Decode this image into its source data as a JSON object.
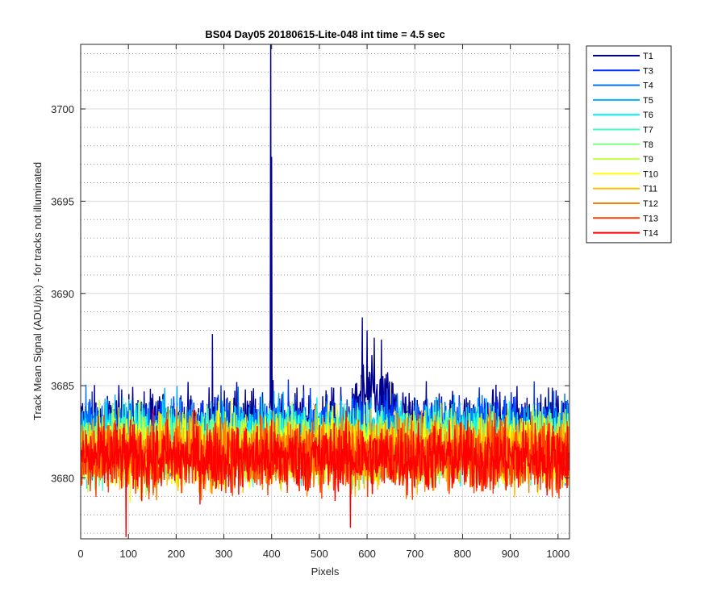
{
  "chart_data": {
    "type": "line",
    "title": "BS04 Day05 20180615-Lite-048 int time = 4.5 sec",
    "xlabel": "Pixels",
    "ylabel": "Track Mean Signal (ADU/pix) - for tracks not illuminated",
    "xlim": [
      0,
      1024
    ],
    "ylim": [
      3676.7,
      3703.5
    ],
    "x_ticks": [
      0,
      100,
      200,
      300,
      400,
      500,
      600,
      700,
      800,
      900,
      1000
    ],
    "x_tick_labels": [
      "0",
      "100",
      "200",
      "300",
      "400",
      "500",
      "600",
      "700",
      "800",
      "900",
      "1000"
    ],
    "y_ticks": [
      3680,
      3685,
      3690,
      3695,
      3700
    ],
    "y_tick_labels": [
      "3680",
      "3685",
      "3690",
      "3695",
      "3700"
    ],
    "y_minor_step": 1,
    "grid": "major solid, minor dotted",
    "legend_position": "outside-right-top",
    "x_points": 1024,
    "series": [
      {
        "name": "T1",
        "color": "#00008f",
        "mean": 3682.9,
        "noise": 0.95,
        "features": [
          {
            "x": 276,
            "value": 3687.8
          },
          {
            "x": 398,
            "value": 3703.5
          },
          {
            "x": 400,
            "value": 3697.4
          },
          {
            "x": 590,
            "value": 3688.7
          },
          {
            "x": 600,
            "value": 3688.0
          },
          {
            "x": 615,
            "value": 3687.6
          },
          {
            "x": 630,
            "value": 3687.5
          }
        ]
      },
      {
        "name": "T3",
        "color": "#0030ff",
        "mean": 3682.6,
        "noise": 0.95,
        "features": []
      },
      {
        "name": "T4",
        "color": "#0070ff",
        "mean": 3682.4,
        "noise": 0.95,
        "features": []
      },
      {
        "name": "T5",
        "color": "#00b0ff",
        "mean": 3682.2,
        "noise": 0.95,
        "features": []
      },
      {
        "name": "T6",
        "color": "#00f0ff",
        "mean": 3682.0,
        "noise": 0.95,
        "features": []
      },
      {
        "name": "T7",
        "color": "#40ffc0",
        "mean": 3681.8,
        "noise": 0.95,
        "features": []
      },
      {
        "name": "T8",
        "color": "#80ff80",
        "mean": 3681.7,
        "noise": 0.95,
        "features": []
      },
      {
        "name": "T9",
        "color": "#c0ff40",
        "mean": 3681.6,
        "noise": 0.95,
        "features": []
      },
      {
        "name": "T10",
        "color": "#ffff00",
        "mean": 3681.5,
        "noise": 0.95,
        "features": []
      },
      {
        "name": "T11",
        "color": "#ffc000",
        "mean": 3681.4,
        "noise": 0.95,
        "features": []
      },
      {
        "name": "T12",
        "color": "#ff8000",
        "mean": 3681.3,
        "noise": 0.95,
        "features": []
      },
      {
        "name": "T13",
        "color": "#ff4000",
        "mean": 3681.2,
        "noise": 0.95,
        "features": []
      },
      {
        "name": "T14",
        "color": "#ff0000",
        "mean": 3681.1,
        "noise": 0.95,
        "features": [
          {
            "x": 95,
            "value": 3676.8
          },
          {
            "x": 565,
            "value": 3677.3
          }
        ]
      }
    ]
  }
}
